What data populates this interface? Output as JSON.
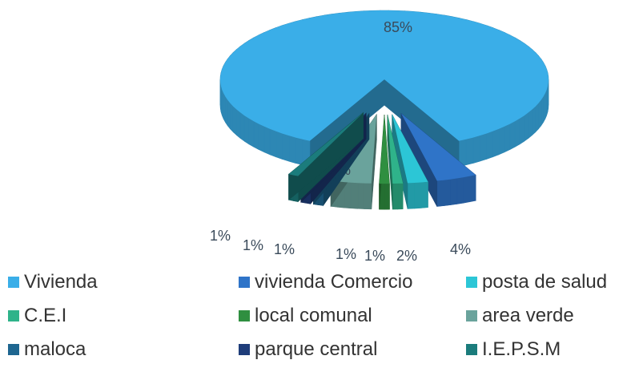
{
  "chart_data": {
    "type": "pie",
    "categories": [
      "Vivienda",
      "vivienda Comercio",
      "posta de salud",
      "C.E.I",
      "local comunal",
      "area verde",
      "maloca",
      "parque central",
      "I.E.P.S.M"
    ],
    "values": [
      85,
      4,
      2,
      1,
      1,
      4,
      1,
      1,
      1
    ],
    "value_labels": [
      "85%",
      "4%",
      "2%",
      "1%",
      "1%",
      "4%",
      "1%",
      "1%",
      "1%"
    ],
    "colors": [
      "#3aaee8",
      "#2f74c8",
      "#2cc6d6",
      "#2fb38a",
      "#2f8f40",
      "#6aa39c",
      "#1e6690",
      "#1f3d7a",
      "#1b7c7c"
    ],
    "legend": "bottom"
  }
}
